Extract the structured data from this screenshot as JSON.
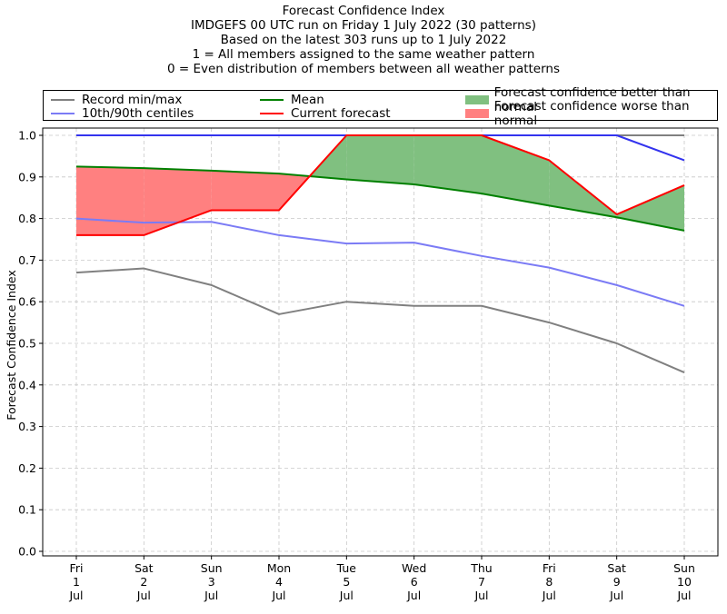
{
  "chart_data": {
    "type": "line",
    "title_lines": [
      "Forecast Confidence Index",
      "IMDGEFS 00 UTC run on Friday 1 July 2022 (30 patterns)",
      "Based on the latest 303 runs up to 1 July 2022",
      "1 = All members assigned to the same weather pattern",
      "0 = Even distribution of members between all weather patterns"
    ],
    "ylabel": "Forecast Confidence Index",
    "xlabel": "",
    "ylim": [
      0,
      1.0
    ],
    "yticks": [
      "0.0",
      "0.1",
      "0.2",
      "0.3",
      "0.4",
      "0.5",
      "0.6",
      "0.7",
      "0.8",
      "0.9",
      "1.0"
    ],
    "grid": true,
    "legend_position": "top",
    "categories": [
      [
        "Fri",
        "1",
        "Jul"
      ],
      [
        "Sat",
        "2",
        "Jul"
      ],
      [
        "Sun",
        "3",
        "Jul"
      ],
      [
        "Mon",
        "4",
        "Jul"
      ],
      [
        "Tue",
        "5",
        "Jul"
      ],
      [
        "Wed",
        "6",
        "Jul"
      ],
      [
        "Thu",
        "7",
        "Jul"
      ],
      [
        "Fri",
        "8",
        "Jul"
      ],
      [
        "Sat",
        "9",
        "Jul"
      ],
      [
        "Sun",
        "10",
        "Jul"
      ]
    ],
    "series": [
      {
        "key": "record_min",
        "name": "Record min/max",
        "color": "#808080",
        "values": [
          0.67,
          0.68,
          0.64,
          0.57,
          0.6,
          0.59,
          0.59,
          0.55,
          0.5,
          0.43
        ]
      },
      {
        "key": "record_max",
        "name": "Record min/max",
        "color": "#808080",
        "values": [
          1.0,
          1.0,
          1.0,
          1.0,
          1.0,
          1.0,
          1.0,
          1.0,
          1.0,
          1.0
        ]
      },
      {
        "key": "p10",
        "name": "10th/90th centiles",
        "color": "#7b7bf5",
        "values": [
          0.8,
          0.79,
          0.792,
          0.76,
          0.74,
          0.742,
          0.71,
          0.682,
          0.64,
          0.59
        ]
      },
      {
        "key": "p90",
        "name": "10th/90th centiles",
        "color": "#3333ee",
        "values": [
          1.0,
          1.0,
          1.0,
          1.0,
          1.0,
          1.0,
          1.0,
          1.0,
          1.0,
          0.94
        ]
      },
      {
        "key": "mean",
        "name": "Mean",
        "color": "#008000",
        "values": [
          0.925,
          0.921,
          0.915,
          0.908,
          0.894,
          0.882,
          0.86,
          0.831,
          0.803,
          0.771
        ]
      },
      {
        "key": "current",
        "name": "Current forecast",
        "color": "#ff0000",
        "values": [
          0.76,
          0.76,
          0.82,
          0.82,
          1.0,
          1.0,
          1.0,
          0.94,
          0.81,
          0.88
        ]
      }
    ],
    "fills": [
      {
        "name": "Forecast confidence better than normal",
        "color": "#80c080"
      },
      {
        "name": "Forecast confidence worse than normal",
        "color": "#ff8080"
      }
    ]
  }
}
